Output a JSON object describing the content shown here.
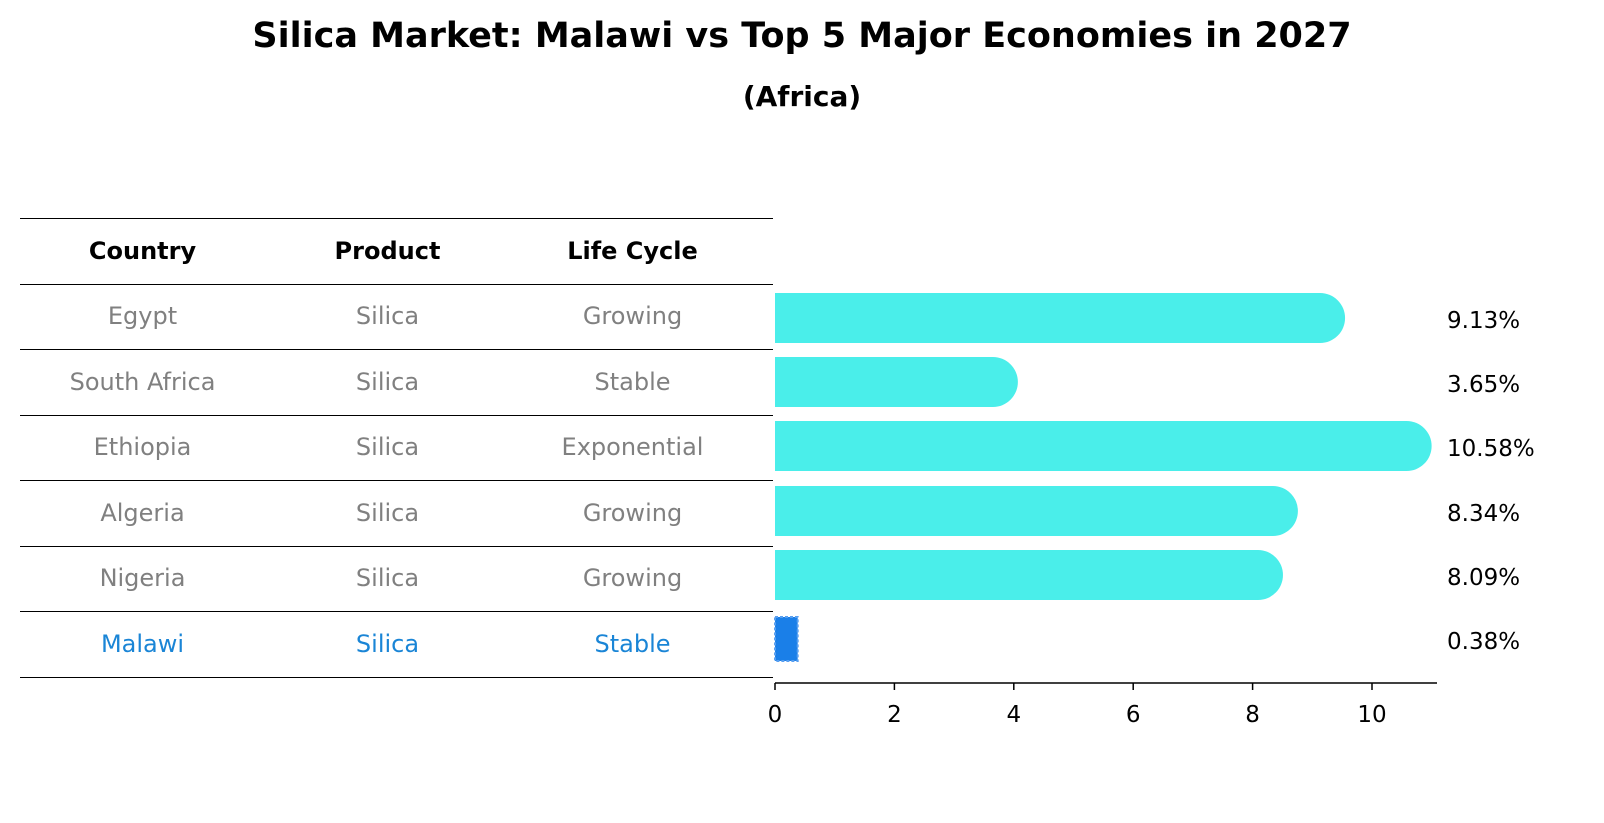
{
  "title": "Silica Market: Malawi vs Top 5 Major Economies in 2027",
  "subtitle": "(Africa)",
  "table": {
    "headers": [
      "Country",
      "Product",
      "Life Cycle"
    ],
    "rows": [
      {
        "country": "Egypt",
        "product": "Silica",
        "life_cycle": "Growing"
      },
      {
        "country": "South Africa",
        "product": "Silica",
        "life_cycle": "Stable"
      },
      {
        "country": "Ethiopia",
        "product": "Silica",
        "life_cycle": "Exponential"
      },
      {
        "country": "Algeria",
        "product": "Silica",
        "life_cycle": "Growing"
      },
      {
        "country": "Nigeria",
        "product": "Silica",
        "life_cycle": "Growing"
      },
      {
        "country": "Malawi",
        "product": "Silica",
        "life_cycle": "Stable"
      }
    ],
    "highlight_row": "Malawi",
    "colors": {
      "text": "#808080",
      "highlight": "#1a85d6"
    }
  },
  "chart_data": {
    "type": "bar",
    "orientation": "horizontal",
    "categories": [
      "Egypt",
      "South Africa",
      "Ethiopia",
      "Algeria",
      "Nigeria",
      "Malawi"
    ],
    "values": [
      9.13,
      3.65,
      10.58,
      8.34,
      8.09,
      0.38
    ],
    "value_labels": [
      "9.13%",
      "3.65%",
      "10.58%",
      "8.34%",
      "8.09%",
      "0.38%"
    ],
    "xlim": [
      0,
      11.1
    ],
    "xticks": [
      0,
      2,
      4,
      6,
      8,
      10
    ],
    "xlabel": "",
    "ylabel": "",
    "grid": false,
    "colors": {
      "bar": "#4aeeea",
      "highlight": "#1a7fe8"
    }
  }
}
